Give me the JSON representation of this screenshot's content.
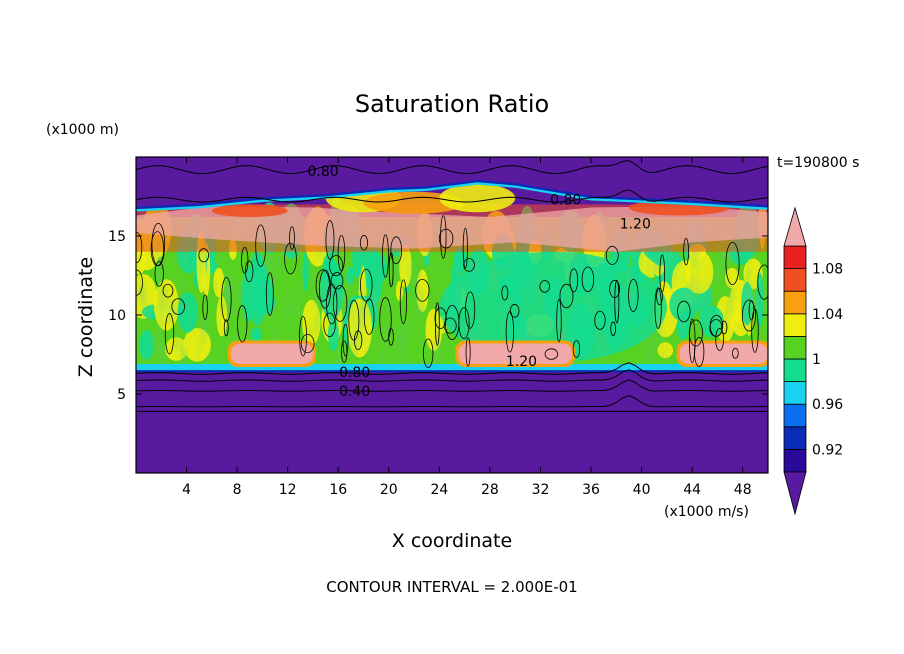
{
  "chart_data": {
    "type": "heatmap",
    "title": "Saturation Ratio",
    "xlabel": "X coordinate",
    "ylabel": "Z coordinate",
    "x_unit": "(x1000 m/s)",
    "y_unit": "(x1000 m)",
    "time_label": "t=190800 s",
    "footer": "CONTOUR INTERVAL = 2.000E-01",
    "xlim": [
      0,
      50
    ],
    "ylim": [
      0,
      20
    ],
    "x_ticks": [
      "4",
      "8",
      "12",
      "16",
      "20",
      "24",
      "28",
      "32",
      "36",
      "40",
      "44",
      "48"
    ],
    "y_ticks": [
      "5",
      "10",
      "15"
    ],
    "colorbar": {
      "labels": [
        "1.08",
        "1.04",
        "1",
        "0.96",
        "0.92"
      ],
      "levels": [
        0.9,
        0.92,
        0.94,
        0.96,
        0.98,
        1.0,
        1.02,
        1.04,
        1.06,
        1.08,
        1.1
      ],
      "colors": [
        "#5a1aa0",
        "#2a0a9a",
        "#0a2ab8",
        "#0a6ef0",
        "#18d2f0",
        "#14dc90",
        "#58d220",
        "#f0ee10",
        "#f8a010",
        "#f05020",
        "#e82020",
        "#f0a8a8"
      ]
    },
    "contour_labels": [
      {
        "text": "0.80",
        "x": 14.8,
        "z": 19.1
      },
      {
        "text": "0.80",
        "x": 34.0,
        "z": 17.3
      },
      {
        "text": "1.20",
        "x": 39.5,
        "z": 15.8
      },
      {
        "text": "1.20",
        "x": 30.5,
        "z": 7.1
      },
      {
        "text": "0.80",
        "x": 17.3,
        "z": 6.4
      },
      {
        "text": "0.40",
        "x": 17.3,
        "z": 5.2
      }
    ],
    "regions": {
      "lower_dry_top_z": 6.5,
      "cloud_layer_z": [
        6.5,
        16.2
      ],
      "upper_supersaturated_z": [
        14.0,
        17.0
      ],
      "upper_dry_bottom_z": 17.0,
      "lower_supersaturated_pockets": [
        {
          "x": [
            7.5,
            14.0
          ],
          "z": [
            6.9,
            8.2
          ]
        },
        {
          "x": [
            25.5,
            34.5
          ],
          "z": [
            6.9,
            8.2
          ]
        },
        {
          "x": [
            43.0,
            50.0
          ],
          "z": [
            6.9,
            8.2
          ]
        }
      ]
    }
  }
}
